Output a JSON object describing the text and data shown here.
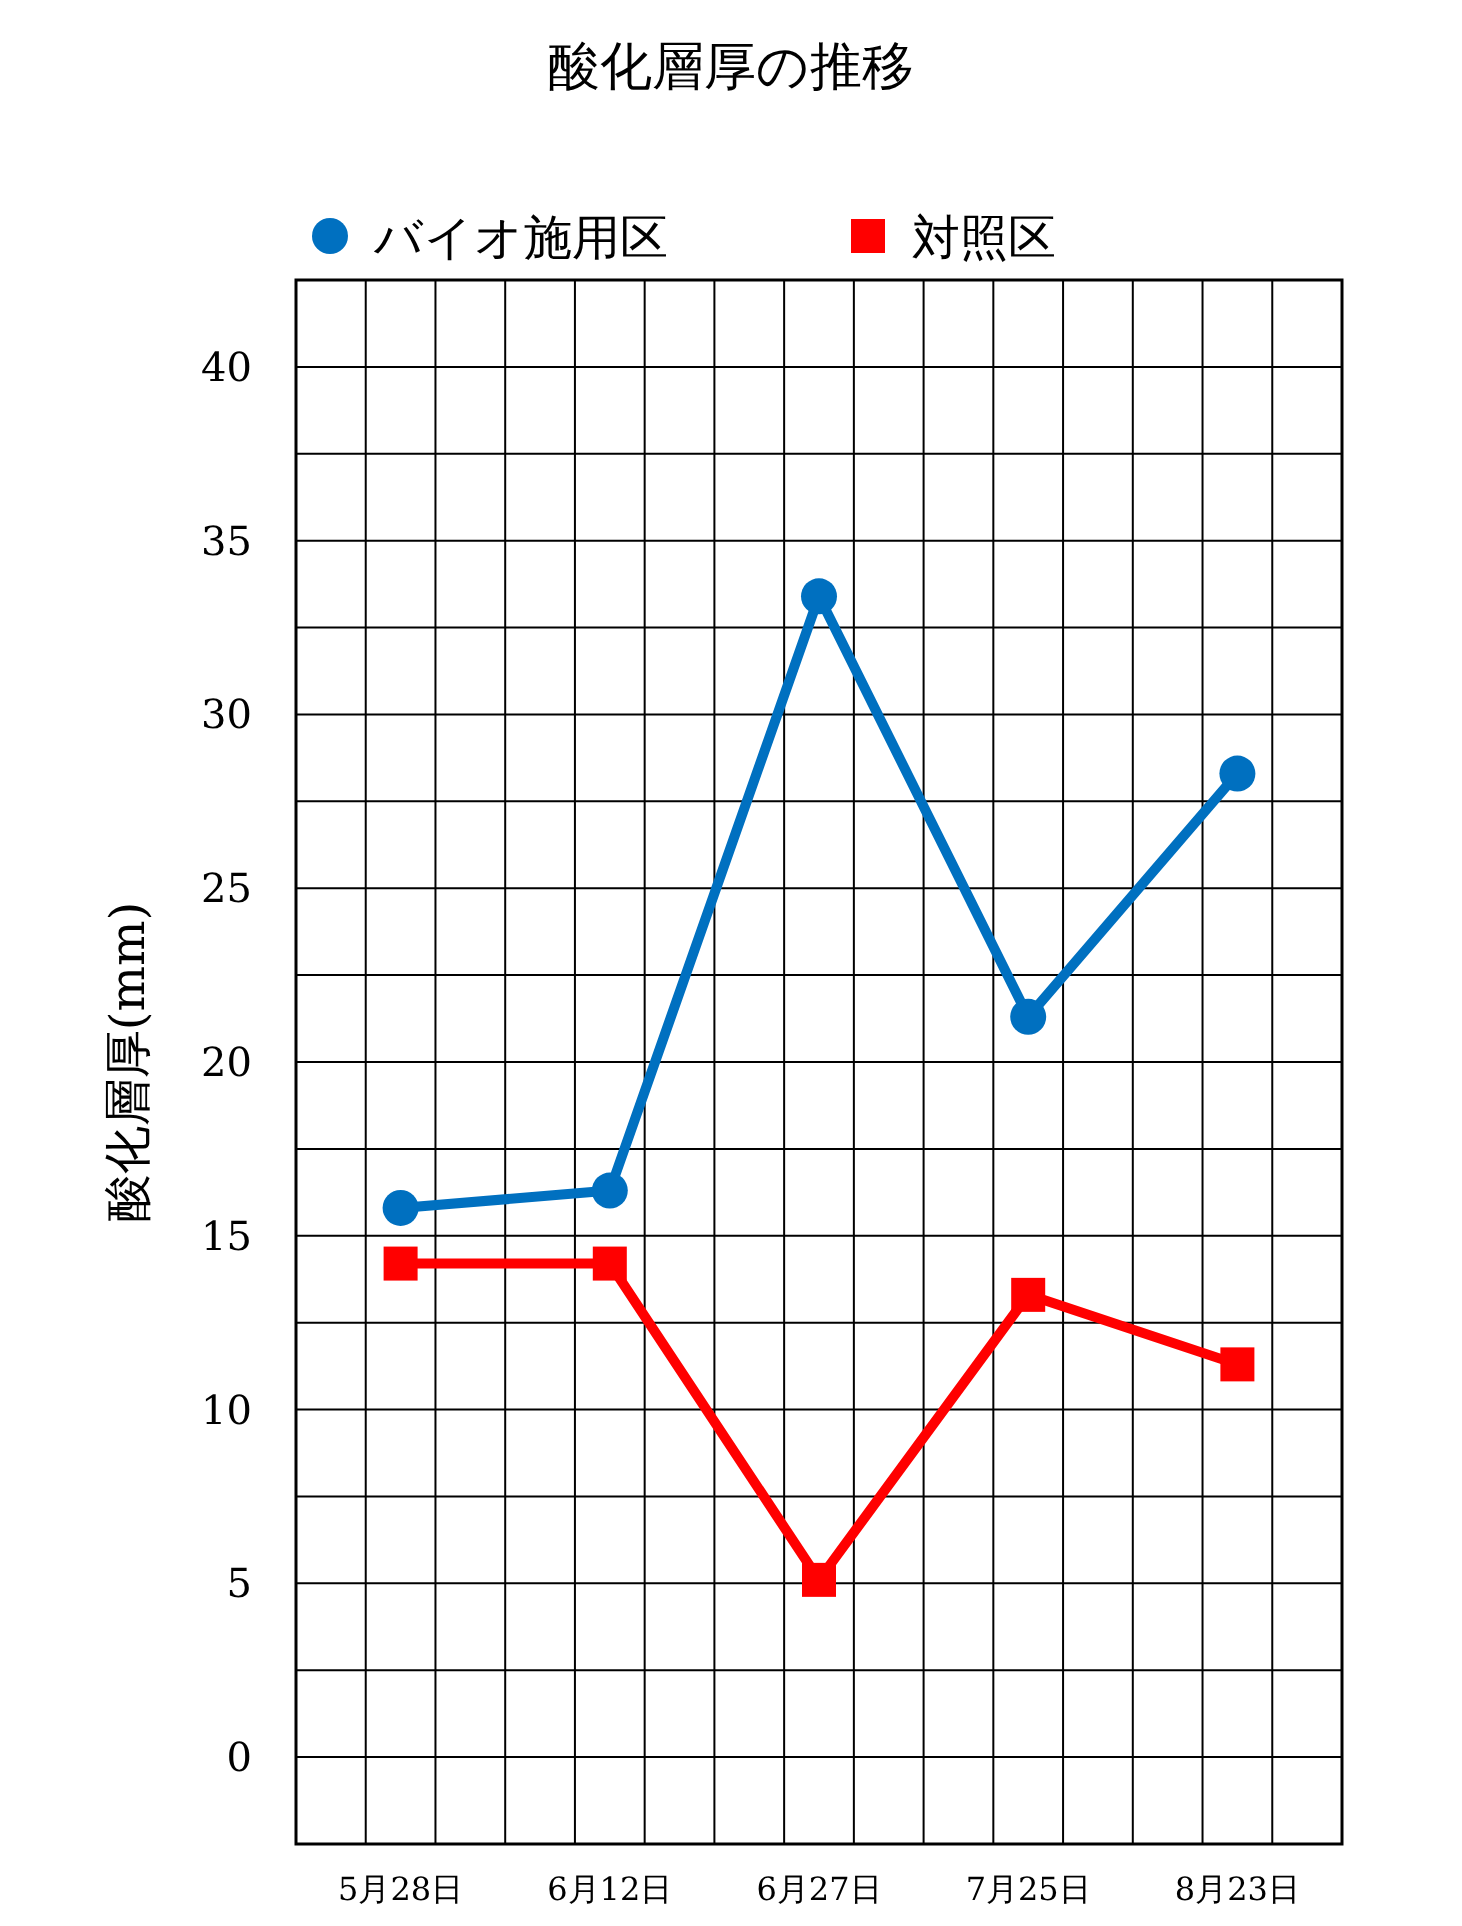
{
  "chart_data": {
    "type": "line",
    "title": "酸化層厚の推移",
    "ylabel": "酸化層厚(mm)",
    "categories": [
      "5月28日",
      "6月12日",
      "6月27日",
      "7月25日",
      "8月23日"
    ],
    "ylim": [
      -2.5,
      42.5
    ],
    "yticks": [
      0,
      5,
      10,
      15,
      20,
      25,
      30,
      35,
      40,
      {
        "value": 2.5,
        "label": null
      },
      {
        "value": 7.5,
        "label": null
      },
      {
        "value": 12.5,
        "label": null
      },
      {
        "value": 17.5,
        "label": null
      },
      {
        "value": 22.5,
        "label": null
      },
      {
        "value": 27.5,
        "label": null
      },
      {
        "value": 32.5,
        "label": null
      },
      {
        "value": 37.5,
        "label": null
      }
    ],
    "grid": true,
    "legend": "top",
    "line_style": "solid",
    "series": [
      {
        "name": "バイオ施用区",
        "color": "#0070c0",
        "marker": "circle",
        "values": [
          15.8,
          16.3,
          33.4,
          21.3,
          28.3
        ]
      },
      {
        "name": "対照区",
        "color": "#ff0000",
        "marker": "square",
        "values": [
          14.2,
          14.2,
          5.1,
          13.3,
          11.3
        ]
      }
    ]
  }
}
